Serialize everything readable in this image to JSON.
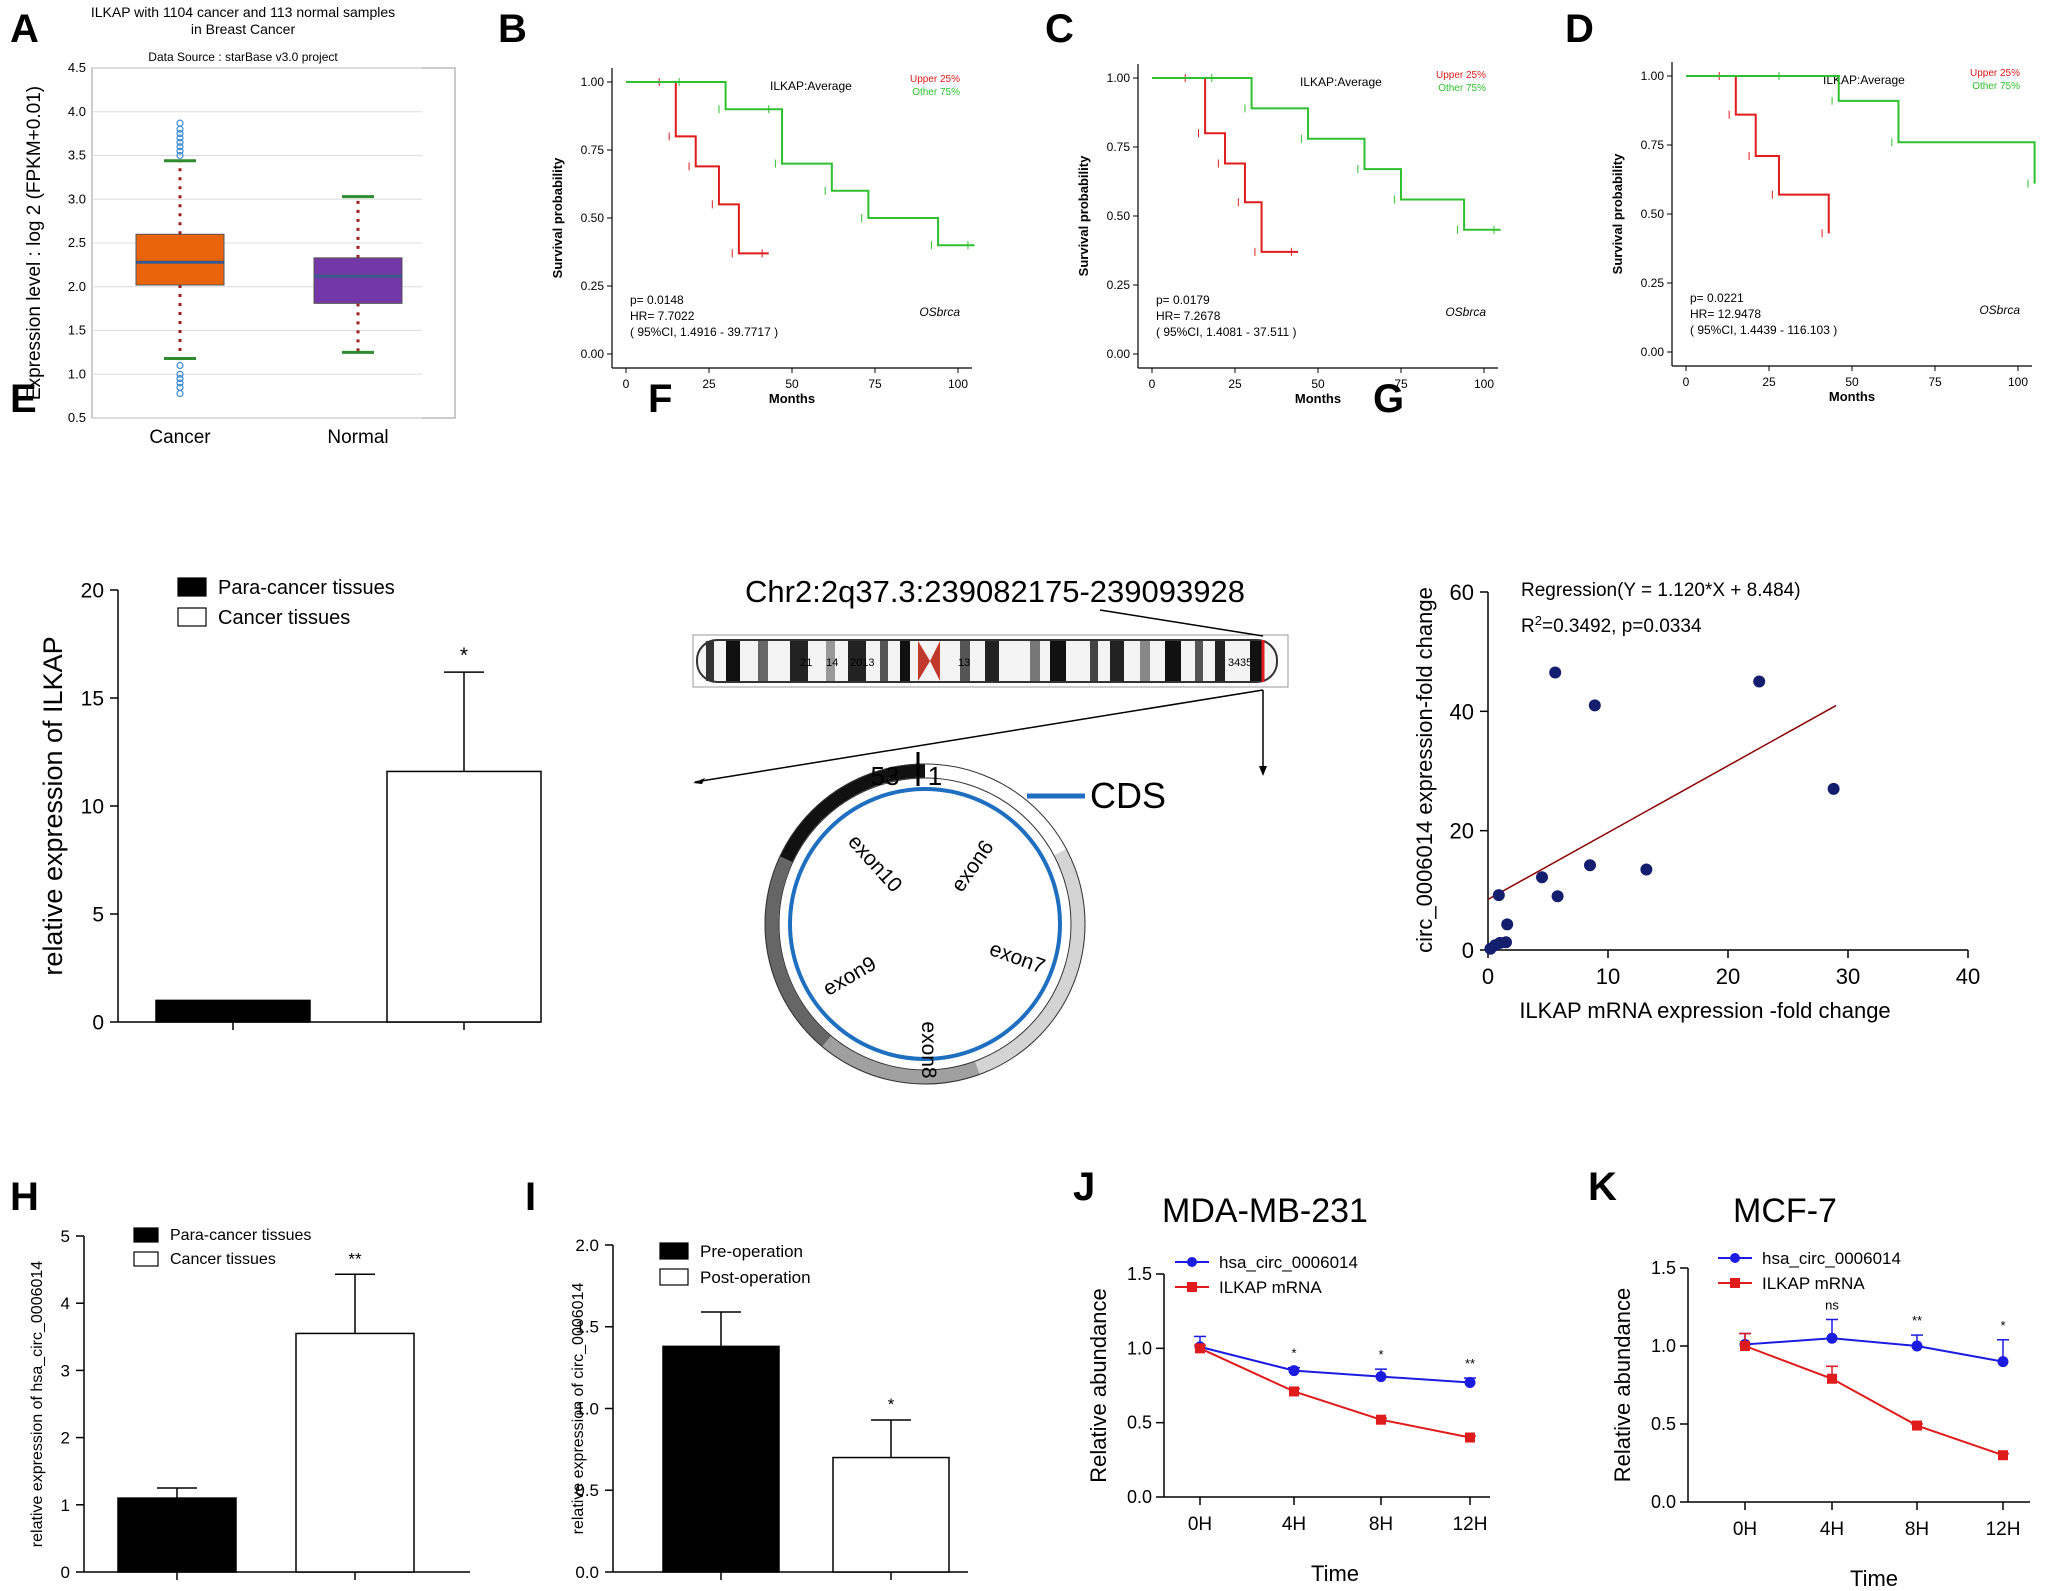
{
  "colors": {
    "green": "#2ec02e",
    "red": "#e01b1b",
    "blue": "#1c1ce0",
    "orange": "#e8630a",
    "purple": "#7437a8",
    "navy": "#141e6e",
    "circle_blue": "#1f6fc0",
    "fit_line": "#8b0000"
  },
  "chart_data": [
    {
      "panel": "A",
      "type": "box",
      "title_line1": "ILKAP with 1104 cancer and 113 normal samples",
      "title_line2": "in Breast Cancer",
      "subtitle": "Data Source : starBase v3.0 project",
      "ylabel": "Expression level : log 2 (FPKM+0.01)",
      "ylim": [
        0.5,
        4.5
      ],
      "yticks": [
        "0.5",
        "1.0",
        "1.5",
        "2.0",
        "2.5",
        "3.0",
        "3.5",
        "4.0",
        "4.5"
      ],
      "categories": [
        "Cancer",
        "Normal"
      ],
      "boxes": [
        {
          "name": "Cancer",
          "q1": 2.02,
          "median": 2.28,
          "q3": 2.6,
          "whisker_low": 1.18,
          "whisker_high": 3.44,
          "outliers": [
            3.5,
            3.55,
            3.6,
            3.65,
            3.7,
            3.75,
            3.8,
            3.87,
            1.1,
            1.0,
            0.95,
            0.9,
            0.85,
            0.78
          ]
        },
        {
          "name": "Normal",
          "q1": 1.81,
          "median": 2.12,
          "q3": 2.33,
          "whisker_low": 1.25,
          "whisker_high": 3.03,
          "outliers": []
        }
      ]
    },
    {
      "panel": "B",
      "type": "line",
      "title": "ILKAP:Average",
      "xlabel": "Months",
      "ylabel": "Survival probability",
      "xlim": [
        0,
        100
      ],
      "ylim": [
        0,
        1
      ],
      "xticks": [
        "0",
        "25",
        "50",
        "75",
        "100"
      ],
      "yticks": [
        "0.00",
        "0.25",
        "0.50",
        "0.75",
        "1.00"
      ],
      "legend": [
        "Upper 25%",
        "Other  75%"
      ],
      "stats": [
        "p= 0.0148",
        "HR= 7.7022",
        "( 95%CI, 1.4916 - 39.7717 )"
      ],
      "tag": "OSbrca",
      "series": [
        {
          "name": "Upper 25%",
          "x": [
            0,
            12,
            15,
            21,
            28,
            34,
            43
          ],
          "y": [
            1.0,
            1.0,
            0.8,
            0.69,
            0.55,
            0.37,
            0.37
          ]
        },
        {
          "name": "Other  75%",
          "x": [
            0,
            18,
            30,
            45,
            47,
            62,
            73,
            94,
            105
          ],
          "y": [
            1.0,
            1.0,
            0.9,
            0.9,
            0.7,
            0.6,
            0.5,
            0.4,
            0.4
          ]
        }
      ]
    },
    {
      "panel": "C",
      "type": "line",
      "title": "ILKAP:Average",
      "xlabel": "Months",
      "ylabel": "Survival probability",
      "xlim": [
        0,
        100
      ],
      "ylim": [
        0,
        1
      ],
      "xticks": [
        "0",
        "25",
        "50",
        "75",
        "100"
      ],
      "yticks": [
        "0.00",
        "0.25",
        "0.50",
        "0.75",
        "1.00"
      ],
      "legend": [
        "Upper 25%",
        "Other  75%"
      ],
      "stats": [
        "p= 0.0179",
        "HR= 7.2678",
        "( 95%CI, 1.4081 - 37.511 )"
      ],
      "tag": "OSbrca",
      "series": [
        {
          "name": "Upper 25%",
          "x": [
            0,
            12,
            16,
            22,
            28,
            33,
            44
          ],
          "y": [
            1.0,
            1.0,
            0.8,
            0.69,
            0.55,
            0.37,
            0.37
          ]
        },
        {
          "name": "Other  75%",
          "x": [
            0,
            20,
            30,
            47,
            64,
            75,
            94,
            105
          ],
          "y": [
            1.0,
            1.0,
            0.89,
            0.78,
            0.67,
            0.56,
            0.45,
            0.45
          ]
        }
      ]
    },
    {
      "panel": "D",
      "type": "line",
      "title": "ILKAP:Average",
      "xlabel": "Months",
      "ylabel": "Survival probability",
      "xlim": [
        0,
        100
      ],
      "ylim": [
        0,
        1
      ],
      "xticks": [
        "0",
        "25",
        "50",
        "75",
        "100"
      ],
      "yticks": [
        "0.00",
        "0.25",
        "0.50",
        "0.75",
        "1.00"
      ],
      "legend": [
        "Upper 25%",
        "Other  75%"
      ],
      "stats": [
        "p= 0.0221",
        "HR= 12.9478",
        "( 95%CI, 1.4439 - 116.103 )"
      ],
      "tag": "OSbrca",
      "series": [
        {
          "name": "Upper 25%",
          "x": [
            0,
            12,
            15,
            21,
            28,
            43
          ],
          "y": [
            1.0,
            1.0,
            0.86,
            0.71,
            0.57,
            0.43
          ]
        },
        {
          "name": "Other  75%",
          "x": [
            0,
            30,
            46,
            64,
            105
          ],
          "y": [
            1.0,
            1.0,
            0.91,
            0.76,
            0.61
          ]
        }
      ]
    },
    {
      "panel": "E",
      "type": "bar",
      "ylabel": "relative expression of ILKAP",
      "ylim": [
        0,
        20
      ],
      "yticks": [
        "0",
        "5",
        "10",
        "15",
        "20"
      ],
      "categories": [
        "Para-cancer tissues",
        "Cancer tissues"
      ],
      "values": [
        1.0,
        11.6
      ],
      "errors": [
        0,
        4.6
      ],
      "significance": [
        "",
        "*"
      ]
    },
    {
      "panel": "F",
      "type": "diagram",
      "locus": "Chr2:2q37.3:239082175-239093928",
      "band_labels": [
        "21",
        "14",
        "2013",
        "13",
        "34",
        "35"
      ],
      "ring_labels": [
        "53",
        "1"
      ],
      "legend": "CDS",
      "exons": [
        "exon6",
        "exon7",
        "exon8",
        "exon9",
        "exon10"
      ]
    },
    {
      "panel": "G",
      "type": "scatter",
      "xlabel": "ILKAP mRNA expression -fold change",
      "ylabel": "circ_0006014 expression-fold change",
      "xlim": [
        0,
        40
      ],
      "ylim": [
        0,
        60
      ],
      "xticks": [
        "0",
        "10",
        "20",
        "30",
        "40"
      ],
      "yticks": [
        "0",
        "20",
        "40",
        "60"
      ],
      "regression_label": "Regression(Y = 1.120*X + 8.484)",
      "r2_prefix": "R",
      "r2_sup": "2",
      "r2_rest": "=0.3492, p=0.0334",
      "slope": 1.12,
      "intercept": 8.484,
      "fit_range": [
        0,
        29
      ],
      "x": [
        0.2,
        0.6,
        1.0,
        0.9,
        1.5,
        1.6,
        4.5,
        5.8,
        5.6,
        8.5,
        8.9,
        13.2,
        22.6,
        28.8
      ],
      "y": [
        0.2,
        0.8,
        1.2,
        9.2,
        1.3,
        4.3,
        12.2,
        9.0,
        46.5,
        14.2,
        41.0,
        13.5,
        45.0,
        27.0
      ]
    },
    {
      "panel": "H",
      "type": "bar",
      "ylabel": "relative expression of hsa_circ_0006014",
      "ylim": [
        0,
        5
      ],
      "yticks": [
        "0",
        "1",
        "2",
        "3",
        "4",
        "5"
      ],
      "categories": [
        "Para-cancer tissues",
        "Cancer tissues"
      ],
      "values": [
        1.1,
        3.55
      ],
      "errors": [
        0.15,
        0.88
      ],
      "significance": [
        "",
        "**"
      ]
    },
    {
      "panel": "I",
      "type": "bar",
      "ylabel": "relative expression of circ_0006014",
      "ylim": [
        0,
        2.0
      ],
      "yticks": [
        "0.0",
        "0.5",
        "1.0",
        "1.5",
        "2.0"
      ],
      "categories": [
        "Pre-operation",
        "Post-operation"
      ],
      "values": [
        1.38,
        0.7
      ],
      "errors": [
        0.21,
        0.23
      ],
      "significance": [
        "",
        "*"
      ]
    },
    {
      "panel": "J",
      "type": "line",
      "title": "MDA-MB-231",
      "xlabel": "Time",
      "ylabel": "Relative abundance",
      "ylim": [
        0,
        1.5
      ],
      "yticks": [
        "0.0",
        "0.5",
        "1.0",
        "1.5"
      ],
      "categories": [
        "0H",
        "4H",
        "8H",
        "12H"
      ],
      "series": [
        {
          "name": "hsa_circ_0006014",
          "values": [
            1.01,
            0.85,
            0.81,
            0.77
          ],
          "errors": [
            0.07,
            0.02,
            0.05,
            0.03
          ]
        },
        {
          "name": "ILKAP mRNA",
          "values": [
            1.0,
            0.71,
            0.52,
            0.4
          ],
          "errors": [
            0.02,
            0.02,
            0.01,
            0.01
          ]
        }
      ],
      "significance": [
        "",
        "*",
        "*",
        "**"
      ]
    },
    {
      "panel": "K",
      "type": "line",
      "title": "MCF-7",
      "xlabel": "Time",
      "ylabel": "Relative abundance",
      "ylim": [
        0,
        1.5
      ],
      "yticks": [
        "0.0",
        "0.5",
        "1.0",
        "1.5"
      ],
      "categories": [
        "0H",
        "4H",
        "8H",
        "12H"
      ],
      "series": [
        {
          "name": "hsa_circ_0006014",
          "values": [
            1.01,
            1.05,
            1.0,
            0.9
          ],
          "errors": [
            0.07,
            0.12,
            0.07,
            0.14
          ]
        },
        {
          "name": "ILKAP mRNA",
          "values": [
            1.0,
            0.79,
            0.49,
            0.3
          ],
          "errors": [
            0.08,
            0.08,
            0.01,
            0.01
          ]
        }
      ],
      "significance": [
        "",
        "ns",
        "**",
        "*"
      ]
    }
  ]
}
